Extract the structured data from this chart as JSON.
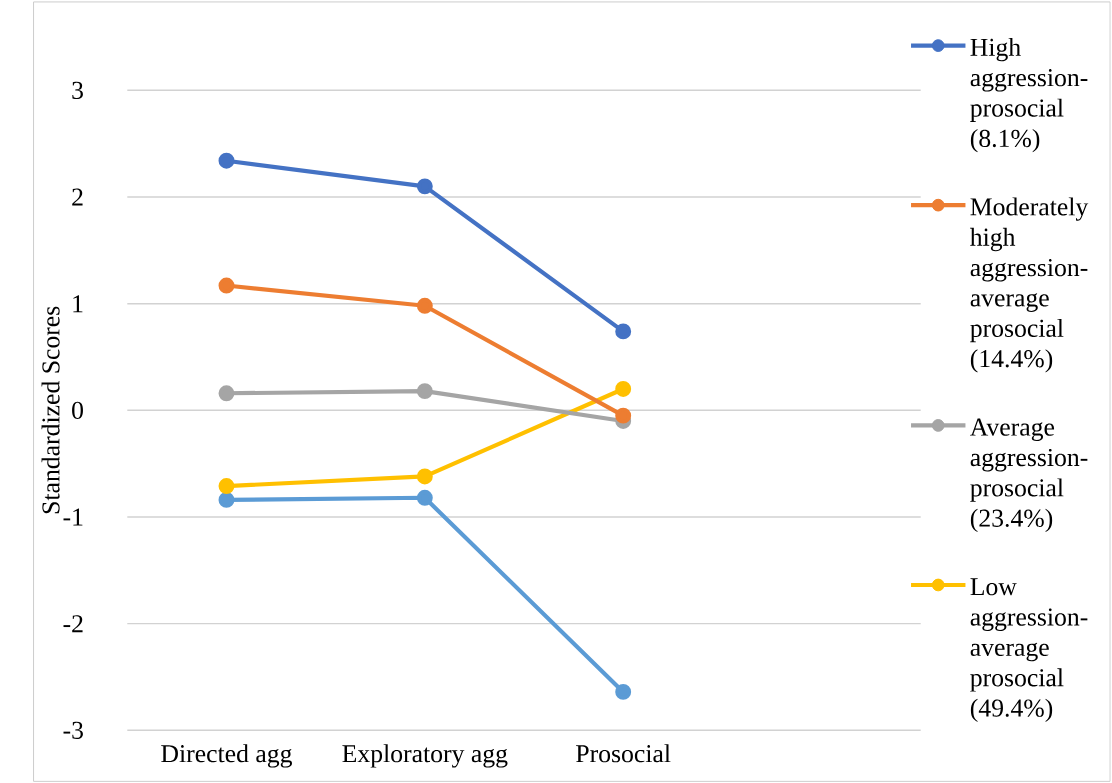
{
  "chart_data": {
    "type": "line",
    "ylabel": "Standardized Scores",
    "categories": [
      "Directed agg",
      "Exploratory agg",
      "Prosocial",
      null
    ],
    "series": [
      {
        "name": "High aggression-prosocial (8.1%)",
        "color": "#4472c4",
        "values": [
          2.34,
          2.1,
          0.74,
          null
        ]
      },
      {
        "name": "Moderately high aggression-average prosocial (14.4%)",
        "color": "#ed7d31",
        "values": [
          1.17,
          0.98,
          -0.05,
          null
        ]
      },
      {
        "name": "Average aggression-prosocial (23.4%)",
        "color": "#a5a5a5",
        "values": [
          0.16,
          0.18,
          -0.1,
          null
        ]
      },
      {
        "name": "Low aggression-average prosocial (49.4%)",
        "color": "#ffc000",
        "values": [
          -0.71,
          -0.62,
          0.2,
          null
        ]
      },
      {
        "color": "#5b9bd5",
        "values": [
          -0.84,
          -0.82,
          -2.64,
          null
        ]
      }
    ],
    "ylim": [
      -3,
      3
    ],
    "yticks": [
      -3,
      -2,
      -1,
      0,
      1,
      2,
      3
    ],
    "grid": "y",
    "legend": "right",
    "marker": "circle",
    "line_style": "solid"
  }
}
